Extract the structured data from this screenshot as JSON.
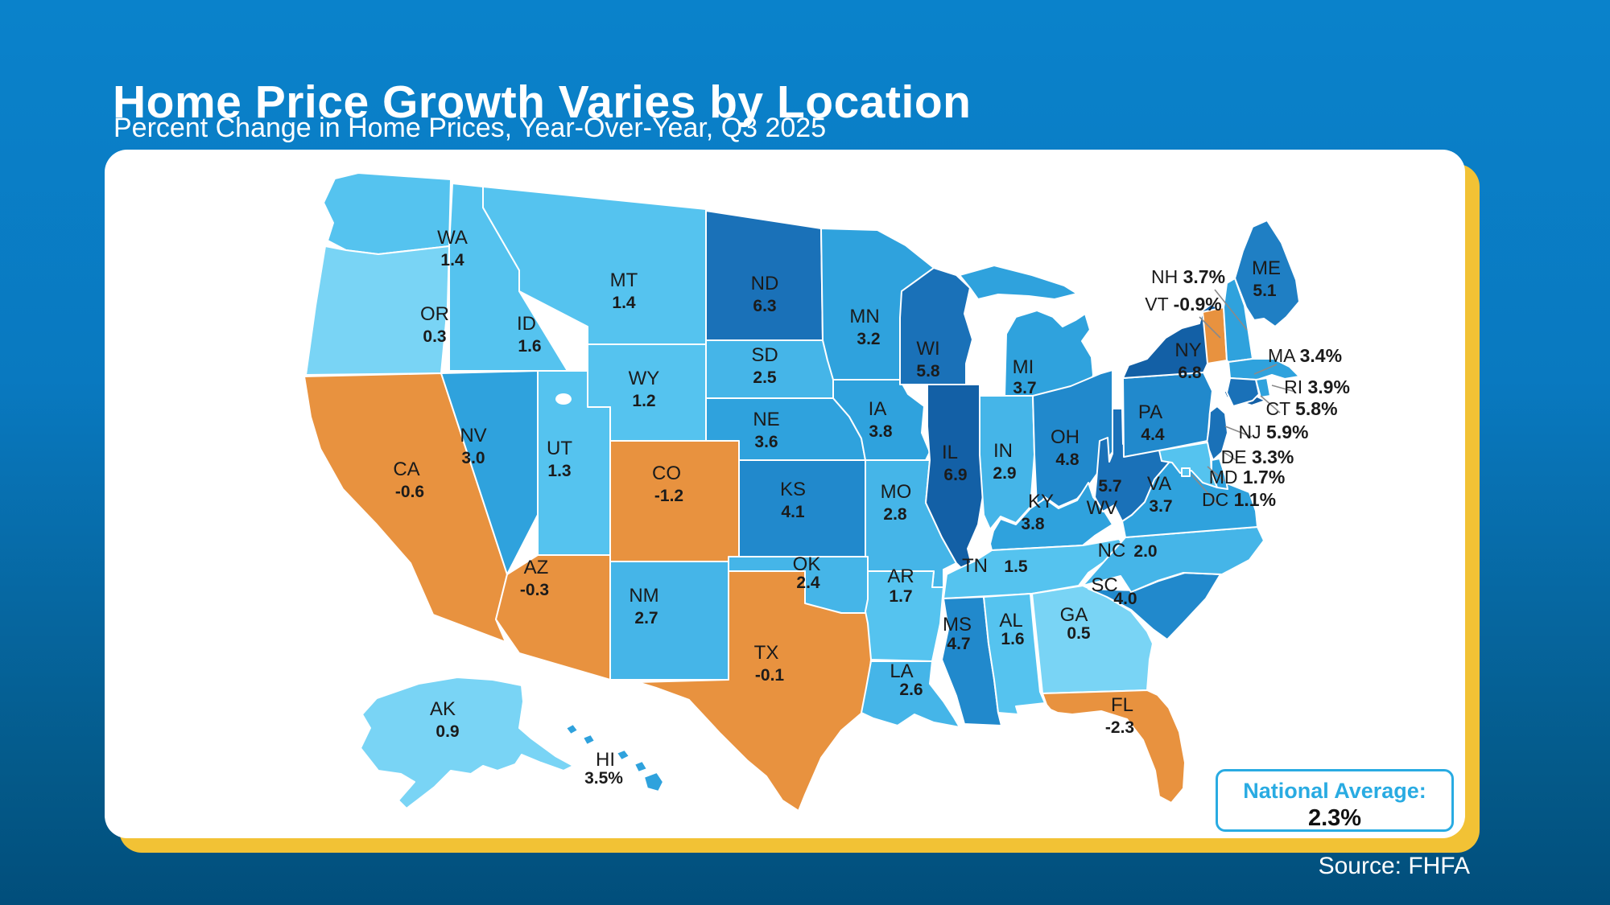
{
  "header": {
    "title": "Home Price Growth Varies by Location",
    "subtitle": "Percent Change in Home Prices, Year-Over-Year, Q3 2025"
  },
  "footer": {
    "source": "Source: FHFA"
  },
  "national_average": {
    "label": "National Average:",
    "value": "2.3%"
  },
  "colors": {
    "background_top": "#0A82CB",
    "background_bottom": "#014E7B",
    "card": "#FFFFFF",
    "card_shadow": "#F2C235",
    "accent_blue": "#29ABE2",
    "negative_orange": "#E8923F",
    "label_text": "#1B1B1B"
  },
  "chart_data": {
    "type": "choropleth",
    "title": "Home Price Growth Varies by Location",
    "subtitle": "Percent Change in Home Prices, Year-Over-Year, Q3 2025",
    "unit": "percent change in home prices, year-over-year, Q3 2025",
    "national_average": "2.3%",
    "source": "FHFA",
    "legend": "none",
    "color_scale": [
      {
        "min": 6.5,
        "color": "#1360A6"
      },
      {
        "min": 5.5,
        "color": "#1A71B8"
      },
      {
        "min": 5.0,
        "color": "#1F7FC4"
      },
      {
        "min": 4.0,
        "color": "#2189CC"
      },
      {
        "min": 3.0,
        "color": "#2FA2DD"
      },
      {
        "min": 2.0,
        "color": "#45B5E8"
      },
      {
        "min": 1.0,
        "color": "#55C3EF"
      },
      {
        "min": 0.0,
        "color": "#79D4F5"
      },
      {
        "min": -99,
        "color": "#E8923F"
      }
    ],
    "states": [
      {
        "code": "WA",
        "value": 1.4,
        "display": "1.4"
      },
      {
        "code": "OR",
        "value": 0.3,
        "display": "0.3"
      },
      {
        "code": "CA",
        "value": -0.6,
        "display": "-0.6"
      },
      {
        "code": "NV",
        "value": 3.0,
        "display": "3.0"
      },
      {
        "code": "ID",
        "value": 1.6,
        "display": "1.6"
      },
      {
        "code": "MT",
        "value": 1.4,
        "display": "1.4"
      },
      {
        "code": "WY",
        "value": 1.2,
        "display": "1.2"
      },
      {
        "code": "UT",
        "value": 1.3,
        "display": "1.3"
      },
      {
        "code": "CO",
        "value": -1.2,
        "display": "-1.2"
      },
      {
        "code": "AZ",
        "value": -0.3,
        "display": "-0.3"
      },
      {
        "code": "NM",
        "value": 2.7,
        "display": "2.7"
      },
      {
        "code": "ND",
        "value": 6.3,
        "display": "6.3"
      },
      {
        "code": "SD",
        "value": 2.5,
        "display": "2.5"
      },
      {
        "code": "NE",
        "value": 3.6,
        "display": "3.6"
      },
      {
        "code": "KS",
        "value": 4.1,
        "display": "4.1"
      },
      {
        "code": "OK",
        "value": 2.4,
        "display": "2.4"
      },
      {
        "code": "TX",
        "value": -0.1,
        "display": "-0.1"
      },
      {
        "code": "MN",
        "value": 3.2,
        "display": "3.2"
      },
      {
        "code": "IA",
        "value": 3.8,
        "display": "3.8"
      },
      {
        "code": "MO",
        "value": 2.8,
        "display": "2.8"
      },
      {
        "code": "AR",
        "value": 1.7,
        "display": "1.7"
      },
      {
        "code": "LA",
        "value": 2.6,
        "display": "2.6"
      },
      {
        "code": "WI",
        "value": 5.8,
        "display": "5.8"
      },
      {
        "code": "IL",
        "value": 6.9,
        "display": "6.9"
      },
      {
        "code": "IN",
        "value": 2.9,
        "display": "2.9"
      },
      {
        "code": "MI",
        "value": 3.7,
        "display": "3.7"
      },
      {
        "code": "OH",
        "value": 4.8,
        "display": "4.8"
      },
      {
        "code": "KY",
        "value": 3.8,
        "display": "3.8"
      },
      {
        "code": "TN",
        "value": 1.5,
        "display": "1.5"
      },
      {
        "code": "MS",
        "value": 4.7,
        "display": "4.7"
      },
      {
        "code": "AL",
        "value": 1.6,
        "display": "1.6"
      },
      {
        "code": "GA",
        "value": 0.5,
        "display": "0.5"
      },
      {
        "code": "FL",
        "value": -2.3,
        "display": "-2.3"
      },
      {
        "code": "SC",
        "value": 4.0,
        "display": "4.0"
      },
      {
        "code": "NC",
        "value": 2.0,
        "display": "2.0"
      },
      {
        "code": "VA",
        "value": 3.7,
        "display": "3.7"
      },
      {
        "code": "WV",
        "value": 5.7,
        "display": "5.7"
      },
      {
        "code": "PA",
        "value": 4.4,
        "display": "4.4"
      },
      {
        "code": "NY",
        "value": 6.8,
        "display": "6.8"
      },
      {
        "code": "ME",
        "value": 5.1,
        "display": "5.1"
      },
      {
        "code": "VT",
        "value": -0.9,
        "display": "-0.9%"
      },
      {
        "code": "NH",
        "value": 3.7,
        "display": "3.7%"
      },
      {
        "code": "MA",
        "value": 3.4,
        "display": "3.4%"
      },
      {
        "code": "RI",
        "value": 3.9,
        "display": "3.9%"
      },
      {
        "code": "CT",
        "value": 5.8,
        "display": "5.8%"
      },
      {
        "code": "NJ",
        "value": 5.9,
        "display": "5.9%"
      },
      {
        "code": "DE",
        "value": 3.3,
        "display": "3.3%"
      },
      {
        "code": "MD",
        "value": 1.7,
        "display": "1.7%"
      },
      {
        "code": "DC",
        "value": 1.1,
        "display": "1.1%"
      },
      {
        "code": "AK",
        "value": 0.9,
        "display": "0.9"
      },
      {
        "code": "HI",
        "value": 3.5,
        "display": "3.5%"
      }
    ]
  }
}
